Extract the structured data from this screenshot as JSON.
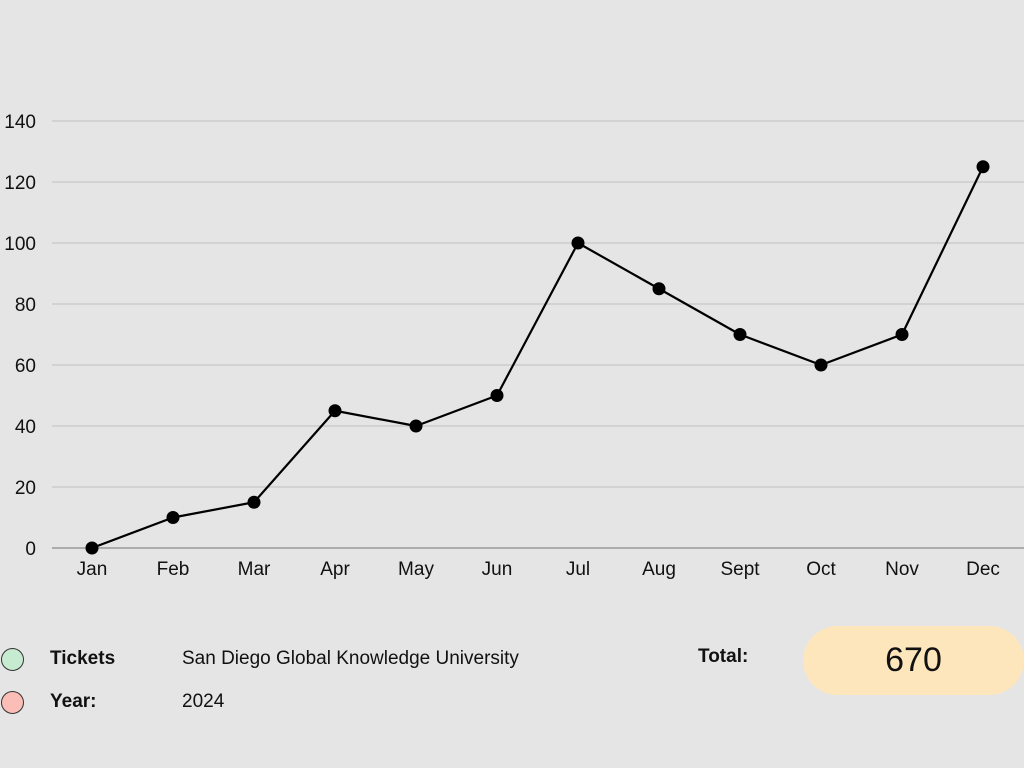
{
  "chart_data": {
    "type": "line",
    "categories": [
      "Jan",
      "Feb",
      "Mar",
      "Apr",
      "May",
      "Jun",
      "Jul",
      "Aug",
      "Sept",
      "Oct",
      "Nov",
      "Dec"
    ],
    "series": [
      {
        "values": [
          0,
          10,
          15,
          45,
          40,
          50,
          100,
          85,
          70,
          60,
          70,
          125
        ]
      }
    ],
    "title": "",
    "xlabel": "",
    "ylabel": "",
    "ylim": [
      0,
      140
    ],
    "yticks": [
      0,
      20,
      40,
      60,
      80,
      100,
      120,
      140
    ],
    "grid": true,
    "line_color": "#000000",
    "marker_color": "#000000",
    "grid_color": "#c6c6c6"
  },
  "legend": {
    "rows": [
      {
        "key": "Tickets",
        "value": "San Diego Global Knowledge University",
        "dot_color": "#c6ebd0"
      },
      {
        "key": "Year:",
        "value": "2024",
        "dot_color": "#fbbeb6"
      }
    ]
  },
  "total": {
    "label": "Total:",
    "value": "670",
    "badge_color": "#fde6bb"
  }
}
